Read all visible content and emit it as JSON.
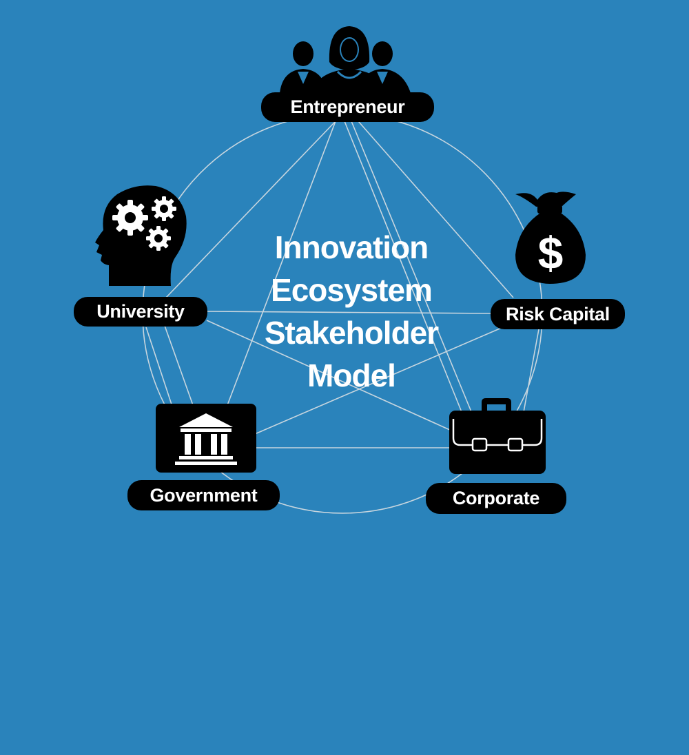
{
  "title": {
    "lines": [
      "Innovation",
      "Ecosystem",
      "Stakeholder",
      "Model"
    ]
  },
  "stakeholders": {
    "entrepreneur": {
      "label": "Entrepreneur",
      "icon": "people-group-icon"
    },
    "risk_capital": {
      "label": "Risk Capital",
      "icon": "money-bag-icon"
    },
    "corporate": {
      "label": "Corporate",
      "icon": "briefcase-icon"
    },
    "government": {
      "label": "Government",
      "icon": "government-building-icon"
    },
    "university": {
      "label": "University",
      "icon": "head-gears-icon"
    }
  },
  "colors": {
    "background": "#2a83bb",
    "pill": "#000000",
    "text": "#ffffff",
    "connector": "#c8d6df"
  }
}
